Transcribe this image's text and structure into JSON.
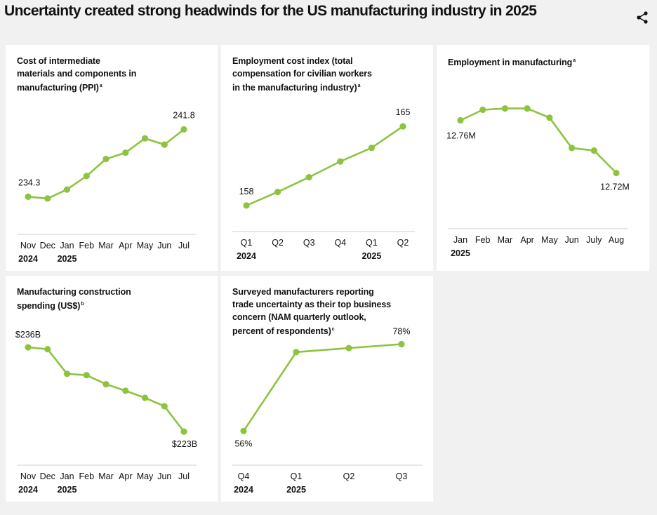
{
  "header": {
    "title": "Uncertainty created strong headwinds for the US manufacturing industry in 2025"
  },
  "icons": {
    "share": "share-icon"
  },
  "colors": {
    "line": "#8cc43f",
    "axis": "#cfcfcf",
    "text": "#111111",
    "background": "#f1f1f1",
    "panel": "#ffffff"
  },
  "chart_data": [
    {
      "id": "ppi",
      "type": "line",
      "title": "Cost of intermediate\nmaterials and components in\nmanufacturing (PPI)",
      "footnote": "a",
      "categories": [
        "Nov",
        "Dec",
        "Jan",
        "Feb",
        "Mar",
        "Apr",
        "May",
        "Jun",
        "Jul"
      ],
      "year_labels": [
        {
          "index": 0,
          "text": "2024"
        },
        {
          "index": 2,
          "text": "2025"
        }
      ],
      "values": [
        234.3,
        234.1,
        235.1,
        236.6,
        238.5,
        239.2,
        240.8,
        240.1,
        241.8
      ],
      "data_labels": [
        {
          "index": 0,
          "text": "234.3"
        },
        {
          "index": 8,
          "text": "241.8"
        }
      ],
      "ylim": [
        233,
        243
      ]
    },
    {
      "id": "eci",
      "type": "line",
      "title": "Employment cost index (total\ncompensation for civilian workers\nin the manufacturing industry)",
      "footnote": "a",
      "categories": [
        "Q1",
        "Q2",
        "Q3",
        "Q4",
        "Q1",
        "Q2"
      ],
      "year_labels": [
        {
          "index": 0,
          "text": "2024"
        },
        {
          "index": 4,
          "text": "2025"
        }
      ],
      "values": [
        158.0,
        159.2,
        160.5,
        161.9,
        163.1,
        165.0
      ],
      "data_labels": [
        {
          "index": 0,
          "text": "158"
        },
        {
          "index": 5,
          "text": "165"
        }
      ],
      "ylim": [
        157,
        166
      ]
    },
    {
      "id": "employment",
      "type": "line",
      "title": "Employment in manufacturing",
      "footnote": "a",
      "categories": [
        "Jan",
        "Feb",
        "Mar",
        "Apr",
        "May",
        "Jun",
        "July",
        "Aug"
      ],
      "year_labels": [
        {
          "index": 0,
          "text": "2025"
        }
      ],
      "values": [
        12.76,
        12.768,
        12.769,
        12.769,
        12.762,
        12.739,
        12.737,
        12.72
      ],
      "data_labels": [
        {
          "index": 0,
          "text": "12.76M"
        },
        {
          "index": 7,
          "text": "12.72M"
        }
      ],
      "ylim": [
        12.7,
        12.78
      ]
    },
    {
      "id": "construction",
      "type": "line",
      "title": "Manufacturing construction\nspending (US$)",
      "footnote": "b",
      "categories": [
        "Nov",
        "Dec",
        "Jan",
        "Feb",
        "Mar",
        "Apr",
        "May",
        "Jun",
        "Jul"
      ],
      "year_labels": [
        {
          "index": 0,
          "text": "2024"
        },
        {
          "index": 2,
          "text": "2025"
        }
      ],
      "values": [
        236.0,
        235.7,
        231.9,
        231.7,
        230.3,
        229.3,
        228.2,
        226.9,
        223.0
      ],
      "data_labels": [
        {
          "index": 0,
          "text": "$236B"
        },
        {
          "index": 8,
          "text": "$223B"
        }
      ],
      "ylim": [
        215,
        240
      ]
    },
    {
      "id": "survey",
      "type": "line",
      "title": "Surveyed manufacturers reporting\ntrade uncertainty as their top business\nconcern (NAM quarterly outlook,\npercent of respondents)",
      "footnote": "c",
      "categories": [
        "Q4",
        "Q1",
        "Q2",
        "Q3"
      ],
      "year_labels": [
        {
          "index": 0,
          "text": "2024"
        },
        {
          "index": 1,
          "text": "2025"
        }
      ],
      "values": [
        56,
        76,
        77,
        78
      ],
      "data_labels": [
        {
          "index": 0,
          "text": "56%"
        },
        {
          "index": 3,
          "text": "78%"
        }
      ],
      "ylim": [
        50,
        82
      ]
    }
  ]
}
